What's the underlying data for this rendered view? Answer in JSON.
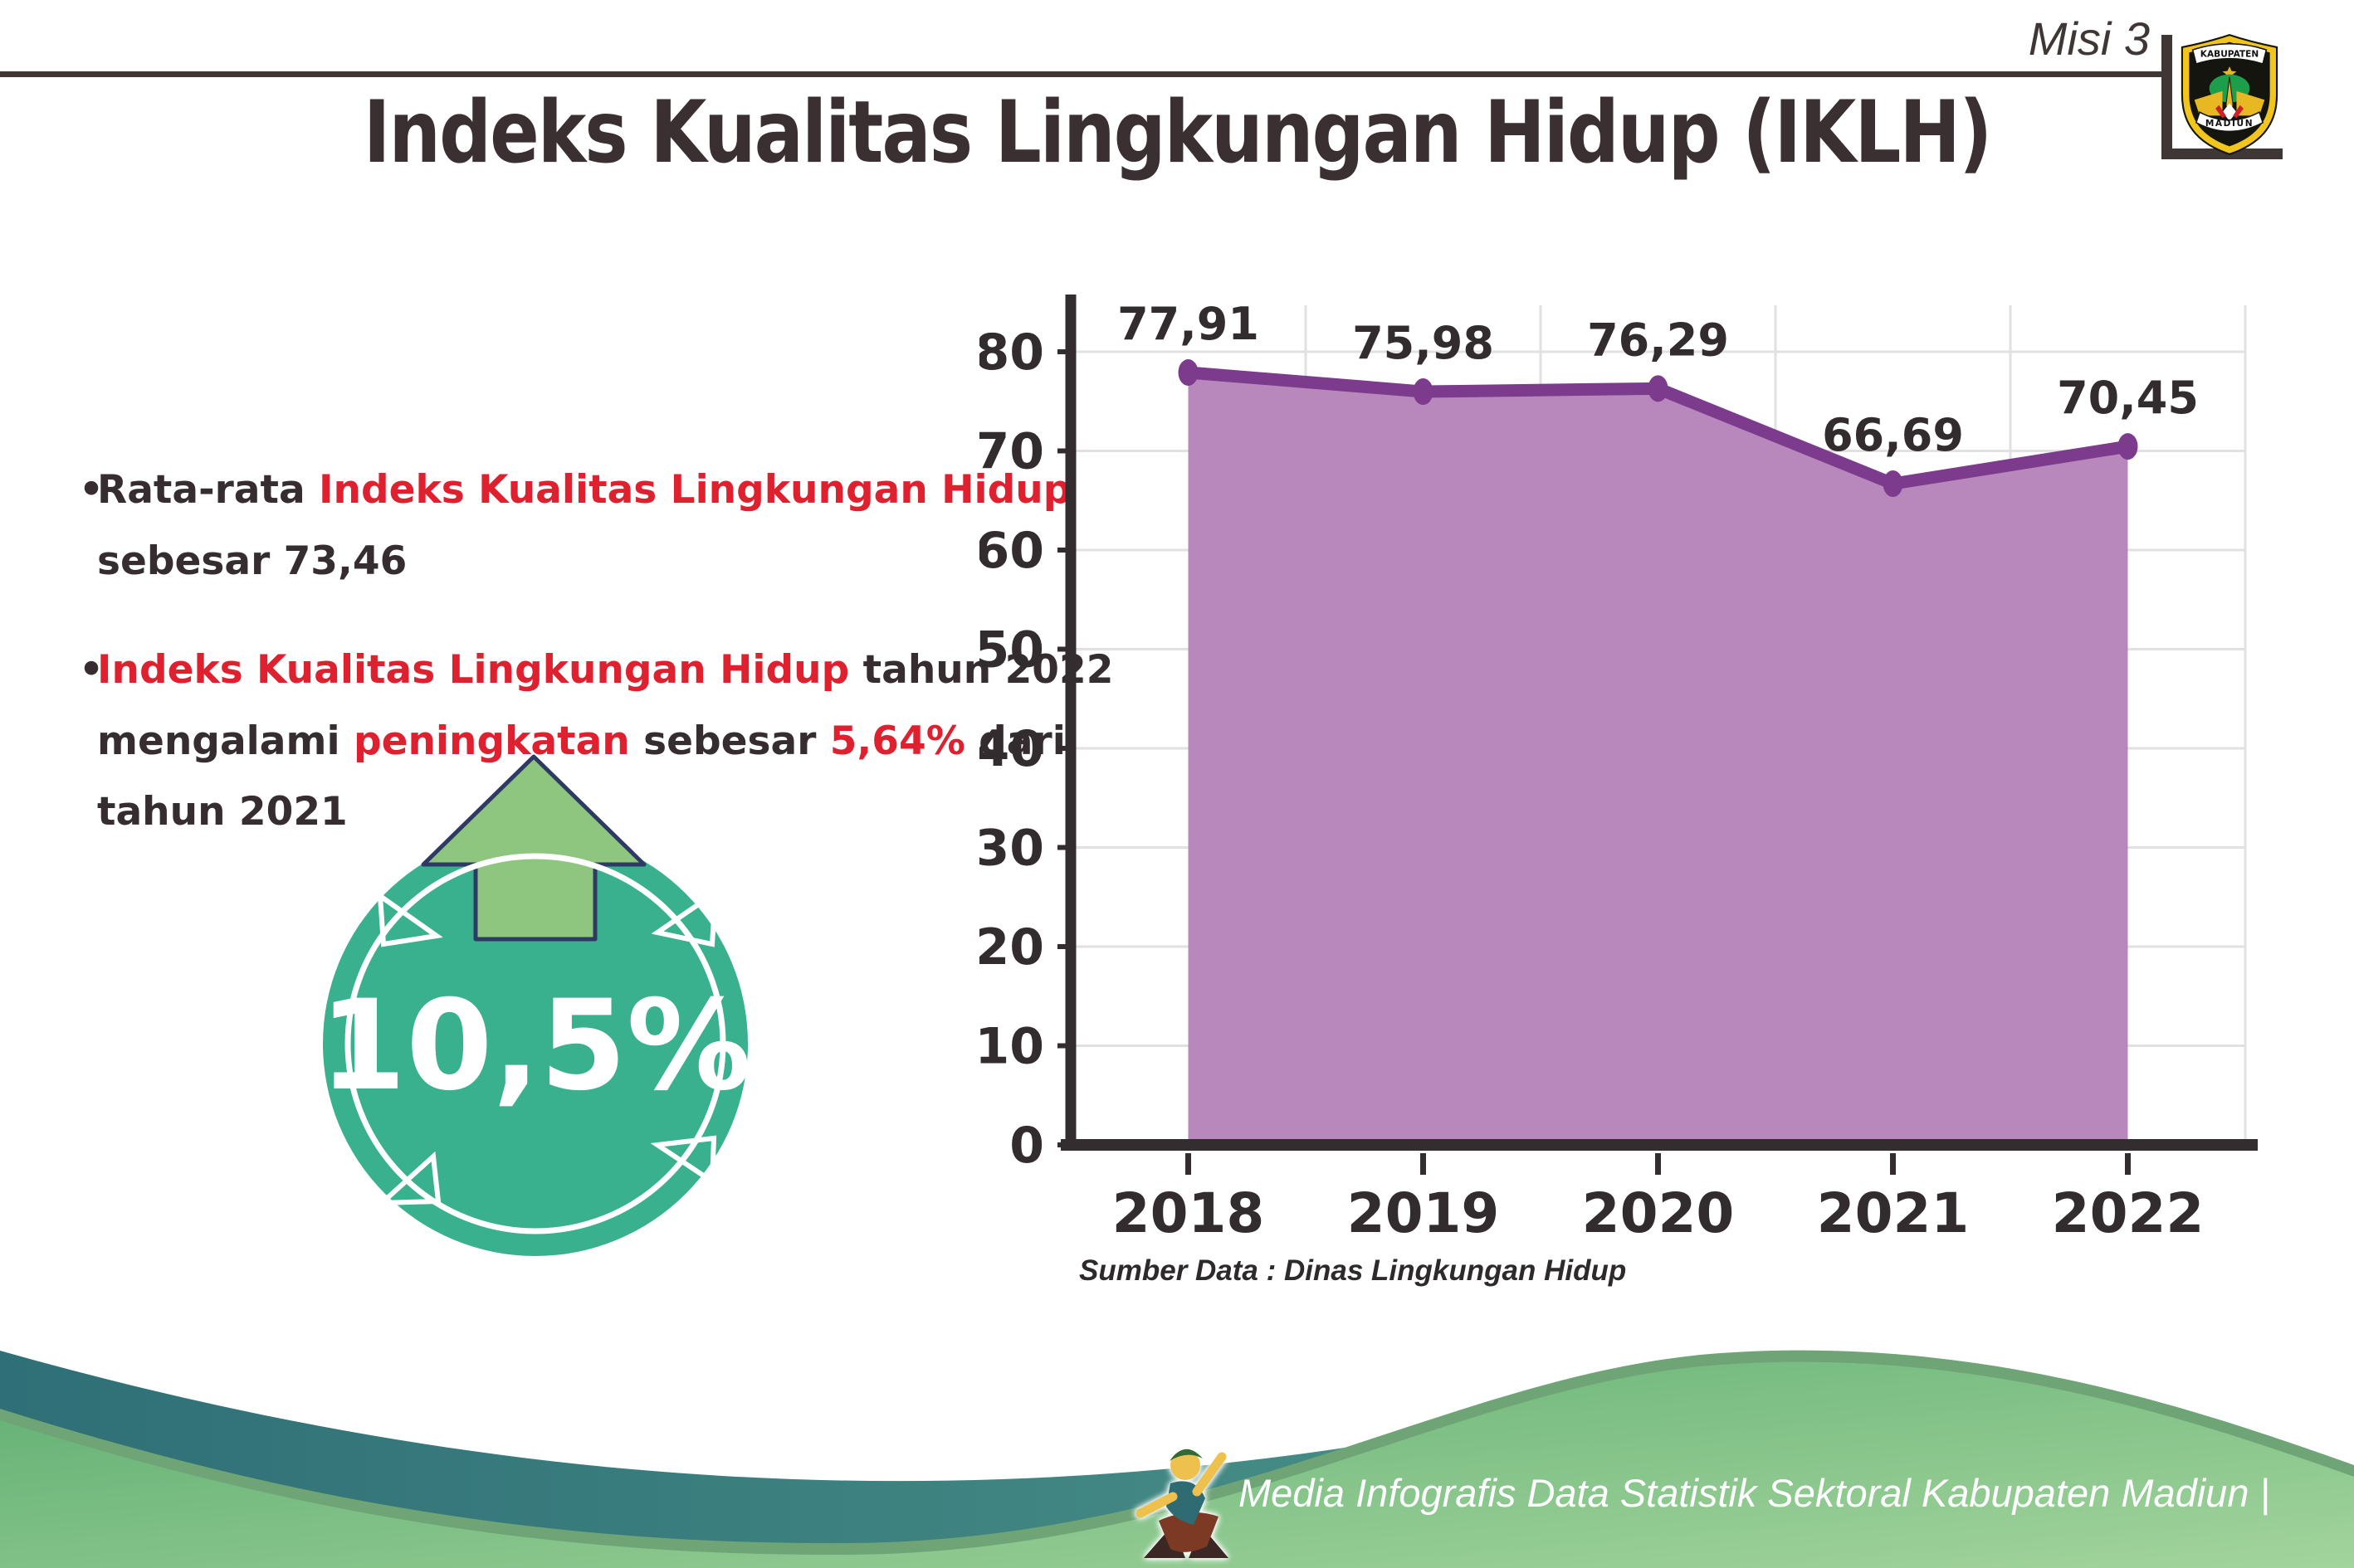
{
  "header": {
    "misi": "Misi 3",
    "emblem_top": "KABUPATEN",
    "emblem_bottom": "MADIUN"
  },
  "title": "Indeks Kualitas Lingkungan Hidup (IKLH)",
  "bullets": {
    "bullet_char": "•",
    "b1_pre": "Rata-rata ",
    "b1_red": "Indeks Kualitas Lingkungan Hidup",
    "b1_line2": "sebesar 73,46",
    "b2_red1": "Indeks Kualitas Lingkungan Hidup",
    "b2_seg1": " tahun 2022",
    "b2_seg2": "mengalami ",
    "b2_red2": "peningkatan",
    "b2_seg3": " sebesar ",
    "b2_red3": "5,64%",
    "b2_seg4": " dari",
    "b2_line3": "tahun 2021"
  },
  "badge": {
    "value": "10,5%"
  },
  "chart_data": {
    "type": "area",
    "categories": [
      "2018",
      "2019",
      "2020",
      "2021",
      "2022"
    ],
    "values": [
      77.91,
      75.98,
      76.29,
      66.69,
      70.45
    ],
    "value_labels": [
      "77,91",
      "75,98",
      "76,29",
      "66,69",
      "70,45"
    ],
    "title": "",
    "xlabel": "",
    "ylabel": "",
    "ylim": [
      0,
      80
    ],
    "yticks": [
      0,
      10,
      20,
      30,
      40,
      50,
      60,
      70,
      80
    ],
    "grid": true,
    "legend": "none",
    "area_color": "#b888bd",
    "line_color": "#7c3b8c",
    "axis_color": "#342d2f",
    "grid_color": "#e3e0e1",
    "caption": "Sumber Data : Dinas Lingkungan Hidup"
  },
  "footer": {
    "text": "Media Infografis Data Statistik Sektoral Kabupaten Madiun |"
  },
  "colors": {
    "accent_red": "#df202f",
    "dark_text": "#362d30",
    "badge_teal": "#39b18e",
    "arrow_green": "#8ec57f",
    "arrow_outline_navy": "#2e3a64",
    "wave_teal": "#3e8a90",
    "wave_green": "#74bb80"
  }
}
